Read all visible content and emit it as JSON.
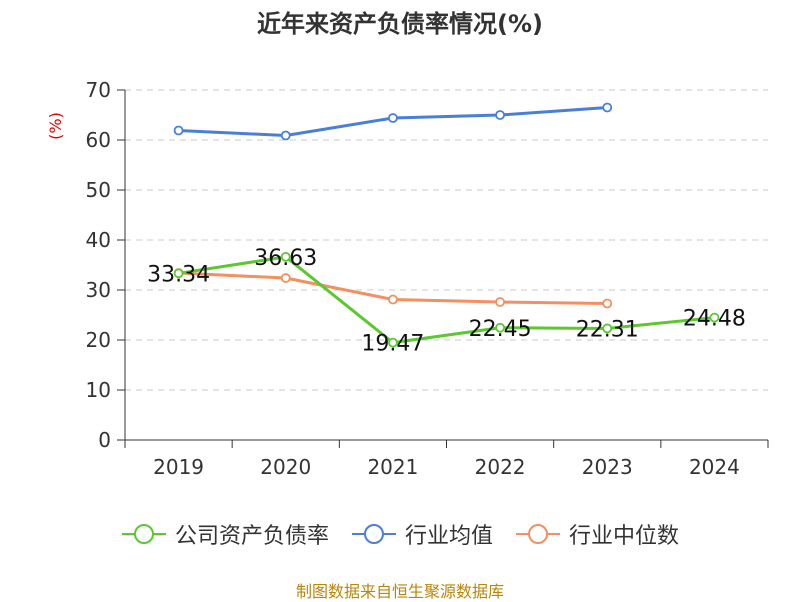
{
  "page": {
    "title": "近年来资产负债率情况(%)",
    "source": "制图数据来自恒生聚源数据库"
  },
  "chart_data": {
    "type": "line",
    "title": "近年来资产负债率情况(%)",
    "xlabel": "",
    "ylabel": "(%)",
    "categories": [
      "2019",
      "2020",
      "2021",
      "2022",
      "2023",
      "2024"
    ],
    "ylim": [
      0,
      70
    ],
    "yticks": [
      0,
      10,
      20,
      30,
      40,
      50,
      60,
      70
    ],
    "grid": "horizontal-dashed",
    "legend_position": "bottom",
    "series": [
      {
        "name": "公司资产负债率",
        "color": "#5cc830",
        "values": [
          33.34,
          36.63,
          19.47,
          22.45,
          22.31,
          24.48
        ],
        "data_labels": [
          "33.34",
          "36.63",
          "19.47",
          "22.45",
          "22.31",
          "24.48"
        ]
      },
      {
        "name": "行业均值",
        "color": "#4a7fd8",
        "values": [
          61.9,
          60.9,
          64.4,
          65.0,
          66.5,
          null
        ]
      },
      {
        "name": "行业中位数",
        "color": "#f29061",
        "values": [
          33.4,
          32.4,
          28.1,
          27.6,
          27.3,
          null
        ]
      }
    ]
  }
}
